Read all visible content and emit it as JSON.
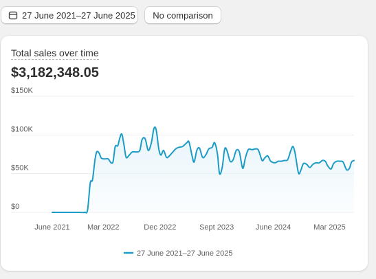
{
  "toolbar": {
    "date_range_label": "27 June 2021–27 June 2025",
    "comparison_label": "No comparison"
  },
  "card": {
    "title": "Total sales over time",
    "total": "$3,182,348.05"
  },
  "colors": {
    "line": "#1a9cc6",
    "area": "#e6f4fa"
  },
  "chart_data": {
    "type": "area",
    "ylim": [
      0,
      150000
    ],
    "yticks": [
      {
        "value": 0,
        "label": "$0"
      },
      {
        "value": 50000,
        "label": "$50K"
      },
      {
        "value": 100000,
        "label": "$100K"
      },
      {
        "value": 150000,
        "label": "$150K"
      }
    ],
    "xlim": [
      "2021-06-27",
      "2025-06-27"
    ],
    "xticks": [
      {
        "date": "2021-06-27",
        "label": "June 2021"
      },
      {
        "date": "2022-03-01",
        "label": "Mar 2022"
      },
      {
        "date": "2022-12-01",
        "label": "Dec 2022"
      },
      {
        "date": "2023-09-01",
        "label": "Sept 2023"
      },
      {
        "date": "2024-06-01",
        "label": "June 2024"
      },
      {
        "date": "2025-03-01",
        "label": "Mar 2025"
      }
    ],
    "grid": true,
    "legend": "bottom",
    "series": [
      {
        "name": "27 June 2021–27 June 2025",
        "points": [
          [
            "2021-06-27",
            0
          ],
          [
            "2021-09-15",
            0
          ],
          [
            "2021-11-01",
            0
          ],
          [
            "2021-12-01",
            0
          ],
          [
            "2021-12-15",
            3000
          ],
          [
            "2021-12-28",
            38000
          ],
          [
            "2022-01-08",
            42000
          ],
          [
            "2022-01-20",
            68000
          ],
          [
            "2022-01-28",
            78000
          ],
          [
            "2022-02-08",
            77000
          ],
          [
            "2022-02-20",
            70000
          ],
          [
            "2022-03-10",
            69000
          ],
          [
            "2022-03-25",
            69000
          ],
          [
            "2022-04-08",
            64000
          ],
          [
            "2022-04-18",
            66000
          ],
          [
            "2022-04-28",
            85000
          ],
          [
            "2022-05-10",
            86000
          ],
          [
            "2022-05-20",
            96000
          ],
          [
            "2022-05-30",
            101000
          ],
          [
            "2022-06-10",
            86000
          ],
          [
            "2022-06-20",
            71000
          ],
          [
            "2022-07-05",
            74000
          ],
          [
            "2022-07-20",
            78000
          ],
          [
            "2022-08-10",
            78000
          ],
          [
            "2022-08-25",
            80000
          ],
          [
            "2022-09-05",
            94000
          ],
          [
            "2022-09-20",
            95000
          ],
          [
            "2022-10-05",
            80000
          ],
          [
            "2022-10-20",
            90000
          ],
          [
            "2022-11-01",
            108000
          ],
          [
            "2022-11-12",
            107000
          ],
          [
            "2022-11-25",
            82000
          ],
          [
            "2022-12-05",
            74000
          ],
          [
            "2022-12-18",
            80000
          ],
          [
            "2023-01-01",
            71000
          ],
          [
            "2023-01-15",
            73000
          ],
          [
            "2023-02-01",
            78000
          ],
          [
            "2023-02-15",
            82000
          ],
          [
            "2023-03-01",
            84000
          ],
          [
            "2023-03-20",
            85000
          ],
          [
            "2023-04-10",
            90000
          ],
          [
            "2023-04-20",
            91000
          ],
          [
            "2023-05-05",
            73000
          ],
          [
            "2023-05-15",
            65000
          ],
          [
            "2023-05-28",
            80000
          ],
          [
            "2023-06-10",
            83000
          ],
          [
            "2023-06-25",
            71000
          ],
          [
            "2023-07-10",
            74000
          ],
          [
            "2023-07-25",
            82000
          ],
          [
            "2023-08-10",
            84000
          ],
          [
            "2023-08-22",
            90000
          ],
          [
            "2023-09-05",
            75000
          ],
          [
            "2023-09-15",
            50000
          ],
          [
            "2023-09-28",
            58000
          ],
          [
            "2023-10-10",
            82000
          ],
          [
            "2023-10-22",
            79000
          ],
          [
            "2023-11-05",
            66000
          ],
          [
            "2023-11-20",
            68000
          ],
          [
            "2023-12-05",
            80000
          ],
          [
            "2023-12-20",
            78000
          ],
          [
            "2024-01-05",
            57000
          ],
          [
            "2024-01-18",
            70000
          ],
          [
            "2024-02-01",
            81000
          ],
          [
            "2024-02-20",
            81000
          ],
          [
            "2024-03-10",
            82000
          ],
          [
            "2024-03-22",
            80000
          ],
          [
            "2024-04-08",
            67000
          ],
          [
            "2024-04-20",
            70000
          ],
          [
            "2024-05-05",
            73000
          ],
          [
            "2024-05-20",
            66000
          ],
          [
            "2024-06-10",
            64000
          ],
          [
            "2024-06-25",
            66000
          ],
          [
            "2024-07-10",
            66000
          ],
          [
            "2024-07-25",
            67000
          ],
          [
            "2024-08-10",
            68000
          ],
          [
            "2024-08-25",
            80000
          ],
          [
            "2024-09-05",
            85000
          ],
          [
            "2024-09-15",
            76000
          ],
          [
            "2024-10-01",
            51000
          ],
          [
            "2024-10-12",
            54000
          ],
          [
            "2024-10-25",
            63000
          ],
          [
            "2024-11-10",
            62000
          ],
          [
            "2024-11-25",
            58000
          ],
          [
            "2024-12-10",
            62000
          ],
          [
            "2024-12-25",
            64000
          ],
          [
            "2025-01-10",
            64000
          ],
          [
            "2025-01-25",
            67000
          ],
          [
            "2025-02-08",
            66000
          ],
          [
            "2025-02-20",
            60000
          ],
          [
            "2025-03-08",
            56000
          ],
          [
            "2025-03-20",
            63000
          ],
          [
            "2025-04-05",
            66000
          ],
          [
            "2025-04-20",
            66000
          ],
          [
            "2025-05-05",
            65000
          ],
          [
            "2025-05-22",
            55000
          ],
          [
            "2025-06-05",
            57000
          ],
          [
            "2025-06-15",
            65000
          ],
          [
            "2025-06-27",
            67000
          ]
        ]
      }
    ]
  }
}
